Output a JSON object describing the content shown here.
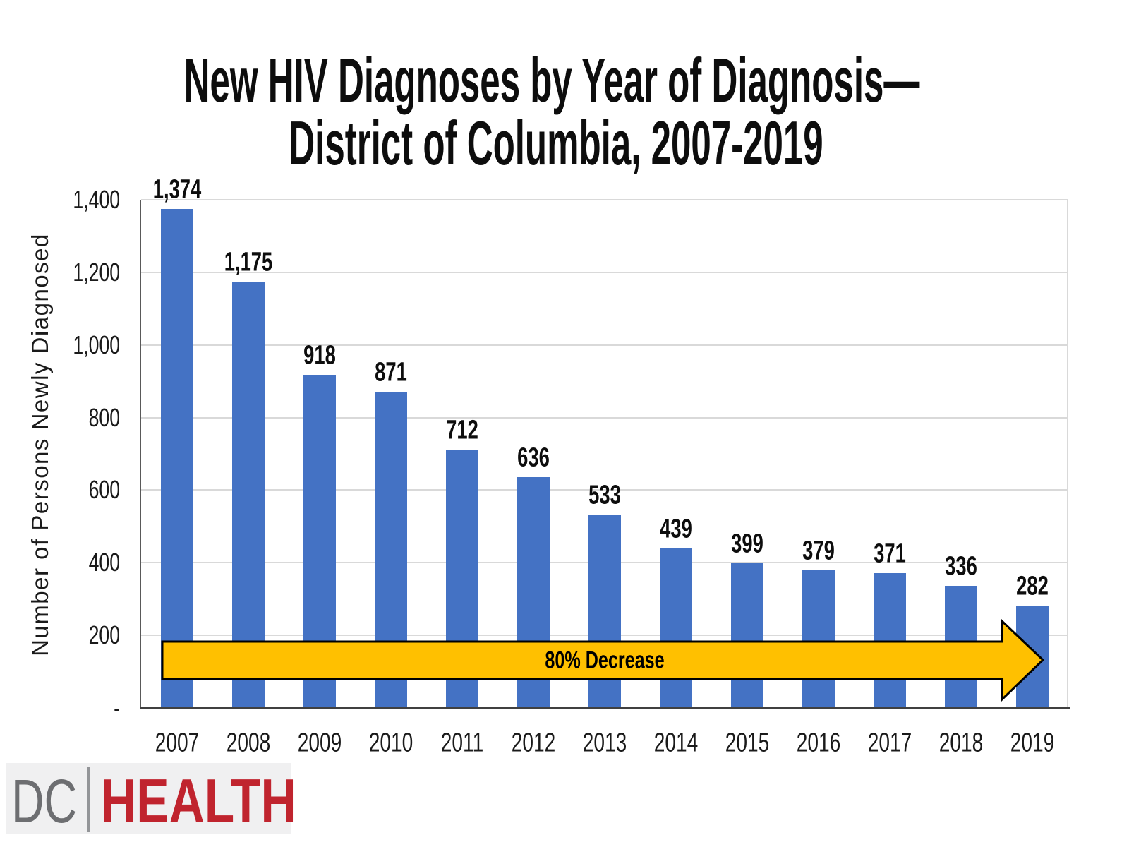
{
  "title": {
    "line1": "New HIV Diagnoses by Year of Diagnosis—",
    "line2": "District of Columbia, 2007-2019"
  },
  "chart_data": {
    "type": "bar",
    "title": "New HIV Diagnoses by Year of Diagnosis— District of Columbia, 2007-2019",
    "categories": [
      "2007",
      "2008",
      "2009",
      "2010",
      "2011",
      "2012",
      "2013",
      "2014",
      "2015",
      "2016",
      "2017",
      "2018",
      "2019"
    ],
    "values": [
      1374,
      1175,
      918,
      871,
      712,
      636,
      533,
      439,
      399,
      379,
      371,
      336,
      282
    ],
    "value_labels": [
      "1,374",
      "1,175",
      "918",
      "871",
      "712",
      "636",
      "533",
      "439",
      "399",
      "379",
      "371",
      "336",
      "282"
    ],
    "xlabel": "",
    "ylabel": "Number of Persons Newly Diagnosed",
    "ylim": [
      0,
      1400
    ],
    "yticks": [
      {
        "value": 0,
        "label": "-"
      },
      {
        "value": 200,
        "label": "200"
      },
      {
        "value": 400,
        "label": "400"
      },
      {
        "value": 600,
        "label": "600"
      },
      {
        "value": 800,
        "label": "800"
      },
      {
        "value": 1000,
        "label": "1,000"
      },
      {
        "value": 1200,
        "label": "1,200"
      },
      {
        "value": 1400,
        "label": "1,400"
      }
    ],
    "grid": true,
    "legend": "none",
    "bar_color": "#4472C4",
    "annotation": {
      "label": "80% Decrease",
      "shape": "right-arrow",
      "fill": "#FFC000",
      "outline": "#000000"
    }
  },
  "footer": {
    "logo": {
      "dc_text": "DC",
      "health_text": "HEALTH",
      "dc_color": "#6D6E71",
      "health_color": "#C0242E"
    }
  }
}
